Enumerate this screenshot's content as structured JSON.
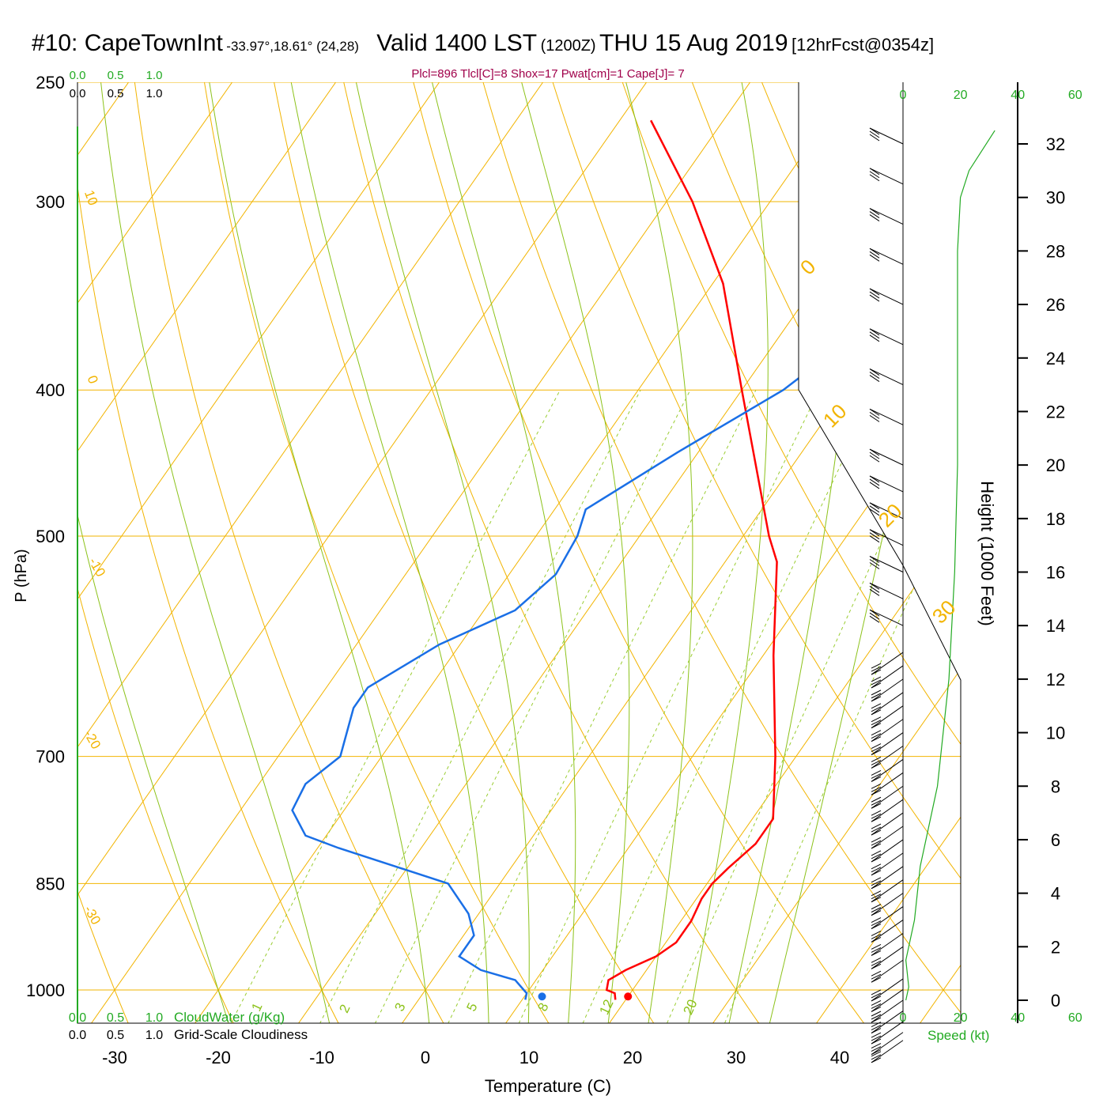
{
  "header": {
    "station": "#10: CapeTownInt",
    "coords": "-33.97°,18.61° (24,28)",
    "valid": "Valid 1400 LST",
    "zulu": "(1200Z)",
    "date": "THU 15 Aug 2019",
    "forecast": "[12hrFcst@0354z]",
    "params": "Plcl=896 Tlcl[C]=8 Shox=17 Pwat[cm]=1 Cape[J]= 7"
  },
  "colors": {
    "temperature": "#ff0000",
    "dewpoint": "#1a6fe6",
    "isotherm": "#f2b400",
    "moist_adiabat": "#8cc21a",
    "mixing_ratio": "#9acd32",
    "green_text": "#22aa22",
    "title_magenta": "#a0004a",
    "wind": "#000000"
  },
  "chart_data": {
    "type": "line",
    "subtype": "skew-T log-P sounding",
    "xlabel": "Temperature (C)",
    "ylabel": "P (hPa)",
    "right_axis_label": "Height (1000 Feet)",
    "speed_axis_label": "Speed (kt)",
    "x_ticks": [
      -30,
      -20,
      -10,
      0,
      10,
      20,
      30,
      40
    ],
    "y_ticks": [
      250,
      300,
      400,
      500,
      700,
      850,
      1000
    ],
    "height_ticks": [
      0,
      2,
      4,
      6,
      8,
      10,
      12,
      14,
      16,
      18,
      20,
      22,
      24,
      26,
      28,
      30,
      32
    ],
    "speed_ticks": [
      0,
      20,
      40,
      60
    ],
    "cloud_scale_ticks": [
      "0.0",
      "0.5",
      "1.0"
    ],
    "cloudwater_label": "CloudWater (g/Kg)",
    "cloudiness_label": "Grid-Scale Cloudiness",
    "isotherm_labels": [
      "10",
      "0",
      "-10",
      "-20",
      "-30",
      "0",
      "10",
      "20",
      "30"
    ],
    "mixing_ratio_labels": [
      "1",
      "2",
      "3",
      "5",
      "8",
      "12",
      "20"
    ],
    "series": [
      {
        "name": "Temperature",
        "points": [
          [
            1015,
            19.0
          ],
          [
            1005,
            18.5
          ],
          [
            1000,
            17.5
          ],
          [
            985,
            17.0
          ],
          [
            970,
            18.0
          ],
          [
            950,
            20.0
          ],
          [
            930,
            21.0
          ],
          [
            900,
            21.0
          ],
          [
            870,
            20.5
          ],
          [
            850,
            20.5
          ],
          [
            830,
            21.0
          ],
          [
            800,
            22.0
          ],
          [
            770,
            22.0
          ],
          [
            700,
            18.0
          ],
          [
            600,
            11.0
          ],
          [
            520,
            5.0
          ],
          [
            500,
            2.5
          ],
          [
            400,
            -10.0
          ],
          [
            340,
            -19.0
          ],
          [
            300,
            -27.5
          ],
          [
            265,
            -37.0
          ]
        ]
      },
      {
        "name": "Dew point",
        "points": [
          [
            1015,
            10.3
          ],
          [
            1005,
            10.0
          ],
          [
            1000,
            9.5
          ],
          [
            985,
            8.0
          ],
          [
            970,
            4.0
          ],
          [
            950,
            1.0
          ],
          [
            920,
            1.0
          ],
          [
            890,
            -1.0
          ],
          [
            850,
            -5.0
          ],
          [
            805,
            -18.0
          ],
          [
            790,
            -22.0
          ],
          [
            760,
            -25.0
          ],
          [
            730,
            -25.5
          ],
          [
            700,
            -24.0
          ],
          [
            650,
            -26.0
          ],
          [
            630,
            -26.0
          ],
          [
            590,
            -22.0
          ],
          [
            560,
            -17.0
          ],
          [
            530,
            -15.5
          ],
          [
            500,
            -16.0
          ],
          [
            480,
            -17.0
          ],
          [
            440,
            -12.0
          ],
          [
            400,
            -6.0
          ],
          [
            370,
            -3.0
          ],
          [
            350,
            -2.0
          ],
          [
            330,
            -4.0
          ],
          [
            320,
            -6.0
          ],
          [
            300,
            -9.0
          ],
          [
            290,
            -11.0
          ],
          [
            265,
            -15.5
          ]
        ]
      }
    ],
    "surface_points": [
      {
        "name": "Surface temperature",
        "p": 1010,
        "t": 20.0
      },
      {
        "name": "Surface dew point",
        "p": 1010,
        "t": 11.7
      }
    ],
    "wind_speed_profile_kt": [
      [
        0.0,
        1
      ],
      [
        0.5,
        2
      ],
      [
        1.5,
        1
      ],
      [
        3,
        4
      ],
      [
        5,
        6
      ],
      [
        7,
        10
      ],
      [
        8,
        12
      ],
      [
        10,
        14
      ],
      [
        12,
        16
      ],
      [
        14,
        17
      ],
      [
        16,
        18
      ],
      [
        20,
        19
      ],
      [
        24,
        19
      ],
      [
        28,
        19
      ],
      [
        30,
        20
      ],
      [
        31,
        23
      ],
      [
        32.5,
        32
      ]
    ],
    "wind_barb_levels_kft": [
      -1.5,
      -1.2,
      -0.8,
      -0.4,
      0,
      0.4,
      0.8,
      1.5,
      2,
      2.5,
      3,
      3.5,
      4,
      4.5,
      5,
      5.5,
      6,
      6.5,
      7,
      7.5,
      8,
      8.5,
      9,
      9.5,
      10,
      10.5,
      11,
      11.5,
      12,
      12.5,
      13,
      14,
      15,
      16,
      17,
      18,
      19,
      20,
      21.5,
      23,
      24.5,
      26,
      27.5,
      29,
      30.5,
      32
    ]
  }
}
